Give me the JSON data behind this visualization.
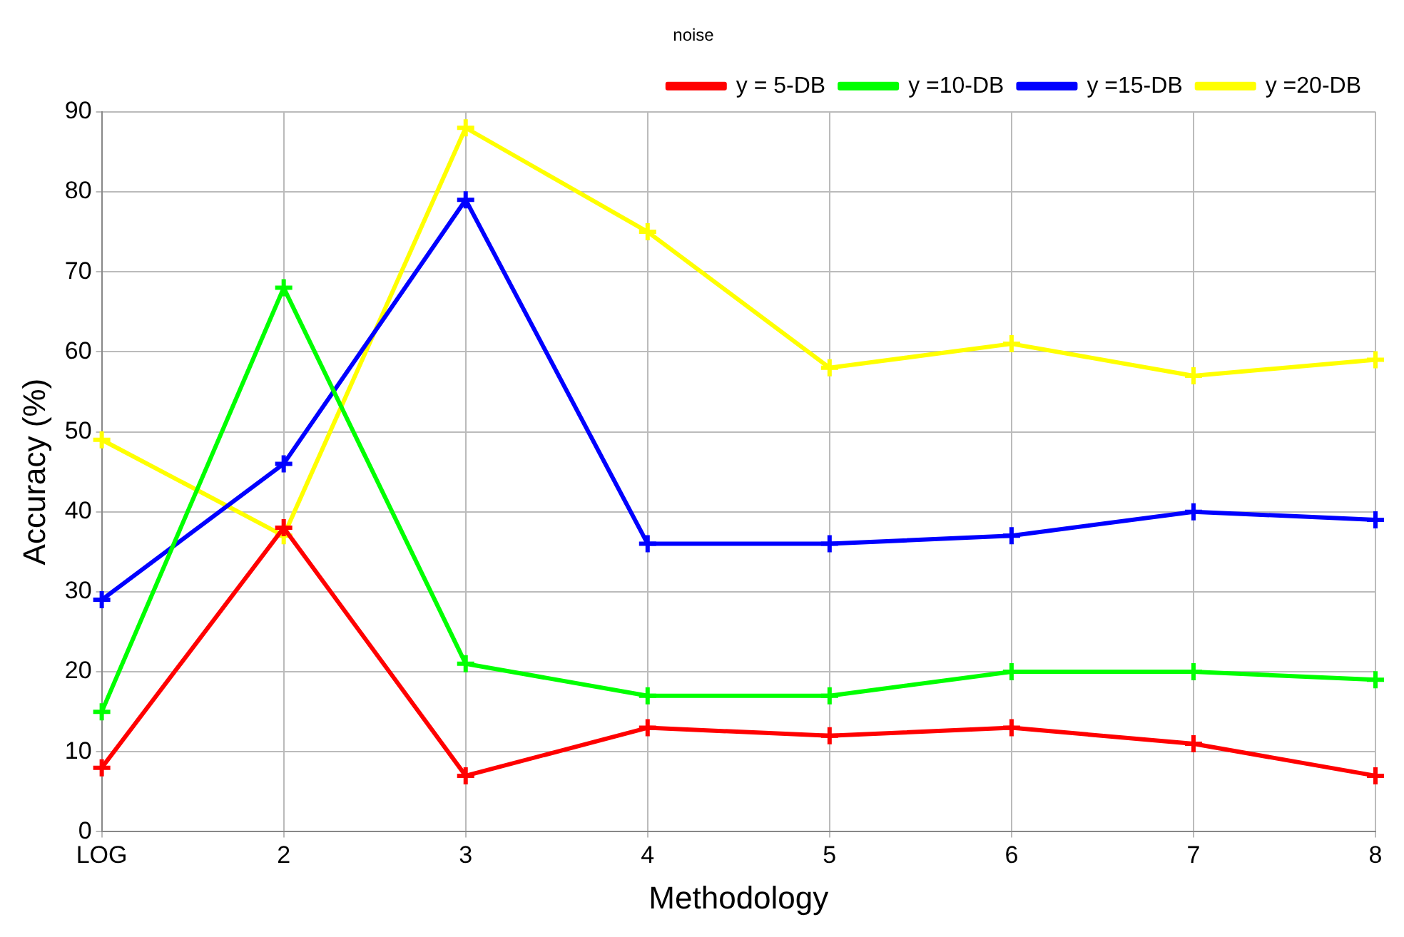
{
  "chart_data": {
    "type": "line",
    "title": "noise",
    "xlabel": "Methodology",
    "ylabel": "Accuracy (%)",
    "categories": [
      "LOG",
      "2",
      "3",
      "4",
      "5",
      "6",
      "7",
      "8"
    ],
    "series": [
      {
        "name": "y = 5-DB",
        "color": "#ff0000",
        "values": [
          8,
          38,
          7,
          13,
          12,
          13,
          11,
          7
        ]
      },
      {
        "name": "y =10-DB",
        "color": "#00ff00",
        "values": [
          15,
          68,
          21,
          17,
          17,
          20,
          20,
          19
        ]
      },
      {
        "name": "y =15-DB",
        "color": "#0000ff",
        "values": [
          29,
          46,
          79,
          36,
          36,
          37,
          40,
          39
        ]
      },
      {
        "name": "y =20-DB",
        "color": "#ffff00",
        "values": [
          49,
          37,
          88,
          75,
          58,
          61,
          57,
          59
        ]
      }
    ],
    "ylim": [
      0,
      90
    ],
    "yticks": [
      0,
      10,
      20,
      30,
      40,
      50,
      60,
      70,
      80,
      90
    ],
    "grid": true,
    "legend": "top right",
    "marker": "cross",
    "line_style": "solid"
  }
}
